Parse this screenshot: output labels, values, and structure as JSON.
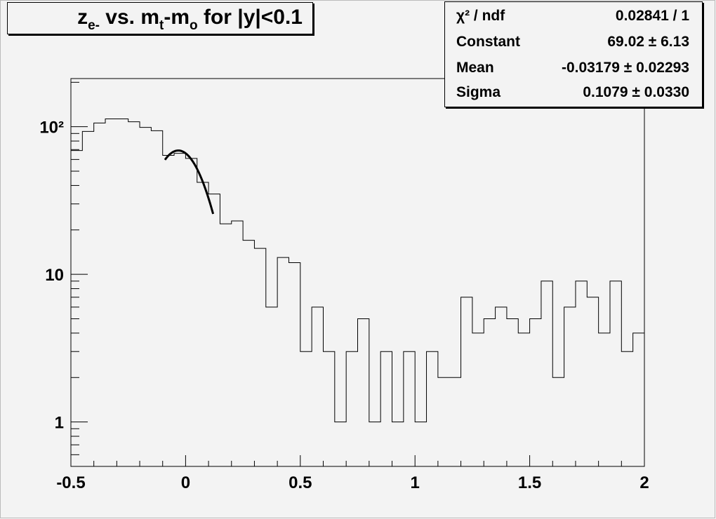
{
  "title": {
    "parts": [
      {
        "text": "z",
        "sub": false
      },
      {
        "text": "e-",
        "sub": true
      },
      {
        "text": " vs. m",
        "sub": false
      },
      {
        "text": "t",
        "sub": true
      },
      {
        "text": "-m",
        "sub": false
      },
      {
        "text": "o",
        "sub": true
      },
      {
        "text": " for |y|<0.1",
        "sub": false
      }
    ]
  },
  "stats": [
    {
      "label": "χ² / ndf",
      "value": "0.02841 / 1"
    },
    {
      "label": "Constant",
      "value": "69.02 ± 6.13"
    },
    {
      "label": "Mean",
      "value": "-0.03179 ± 0.02293"
    },
    {
      "label": "Sigma",
      "value": "0.1079 ± 0.0330"
    }
  ],
  "chart_data": {
    "type": "histogram",
    "xlim": [
      -0.5,
      2
    ],
    "ylim": [
      0.5,
      212
    ],
    "ylog": true,
    "grid": false,
    "bin_width": 0.05,
    "x_ticks": [
      "-0.5",
      "0",
      "0.5",
      "1",
      "1.5",
      "2"
    ],
    "x_tick_values": [
      -0.5,
      0,
      0.5,
      1,
      1.5,
      2
    ],
    "y_ticks": [
      "1",
      "10",
      "10²"
    ],
    "y_tick_values": [
      1,
      10,
      100
    ],
    "values": [
      69,
      93,
      106,
      113,
      113,
      108,
      99,
      94,
      64,
      66,
      61,
      42,
      35,
      22,
      23,
      17,
      15,
      6,
      13,
      12,
      3,
      6,
      3,
      1,
      3,
      5,
      1,
      3,
      1,
      3,
      1,
      3,
      2,
      2,
      7,
      4,
      5,
      6,
      5,
      4,
      5,
      9,
      2,
      6,
      9,
      7,
      4,
      9,
      3,
      4
    ],
    "fit": {
      "function": "gaus",
      "constant": 69.02,
      "mean": -0.03179,
      "sigma": 0.1079,
      "range": [
        -0.09,
        0.12
      ]
    },
    "colors": {
      "line": "#000000",
      "background": "#f3f3f3"
    }
  }
}
